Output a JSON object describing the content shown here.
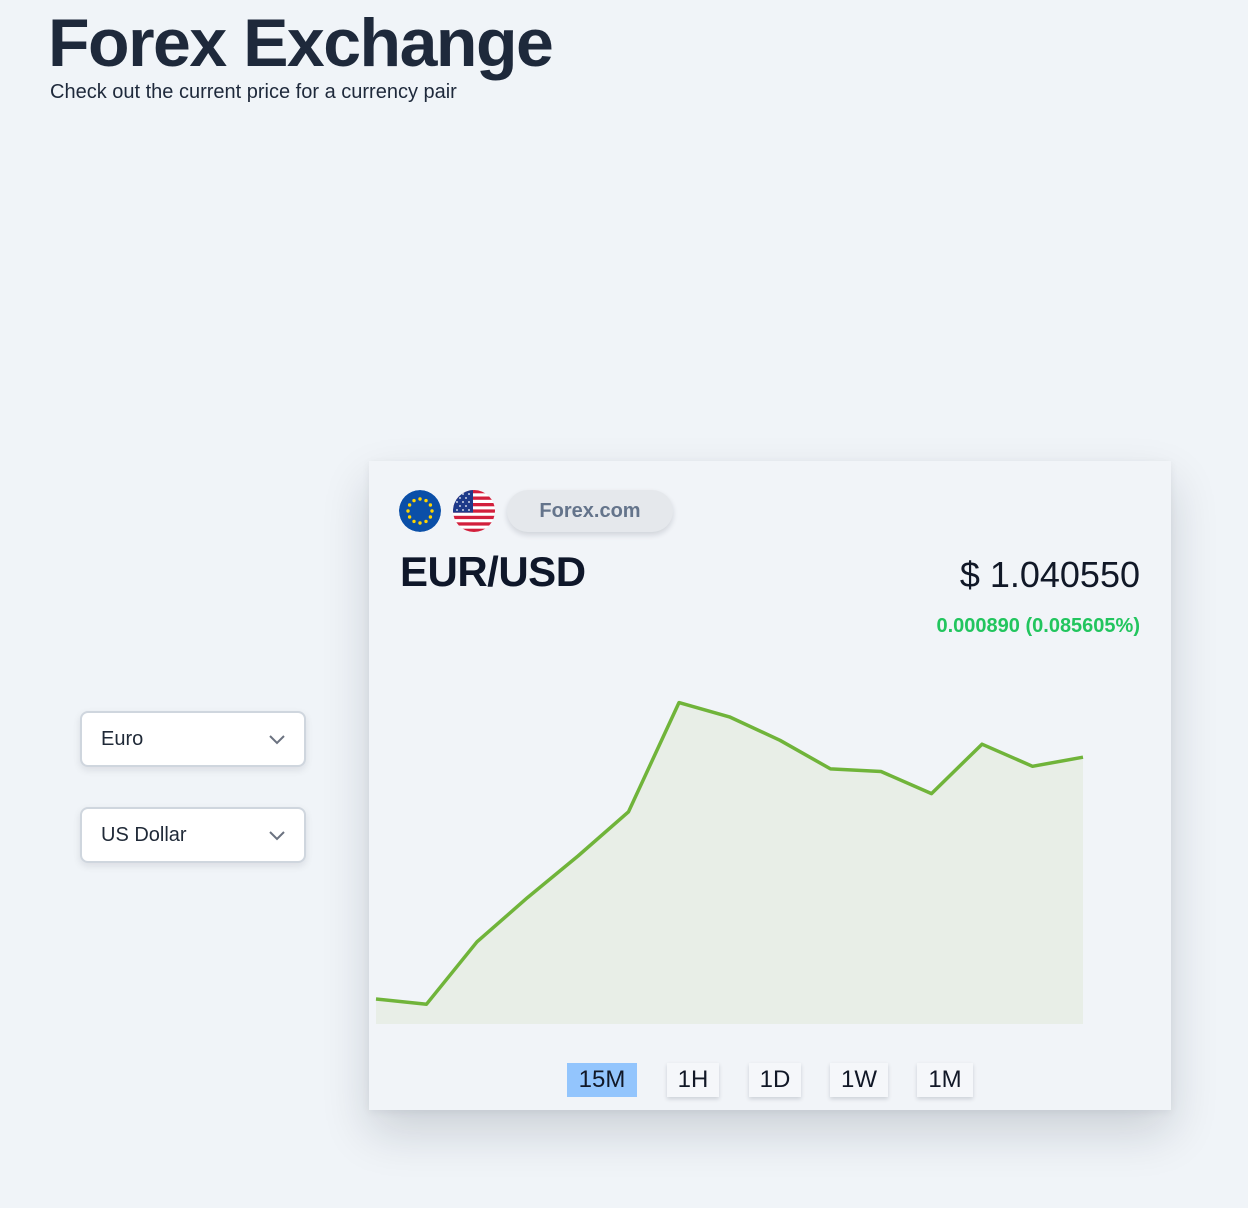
{
  "header": {
    "title": "Forex Exchange",
    "subtitle": "Check out the current price for a currency pair"
  },
  "selectors": {
    "base": {
      "value": "Euro",
      "icon": "chevron-down-icon"
    },
    "quote": {
      "value": "US Dollar",
      "icon": "chevron-down-icon"
    }
  },
  "card": {
    "flags": [
      "eu-flag-icon",
      "us-flag-icon"
    ],
    "source": "Forex.com",
    "pair": "EUR/USD",
    "price": "$ 1.040550",
    "change": "0.000890 (0.085605%)",
    "colors": {
      "line": "#70b43a",
      "area": "#e8eee7",
      "change": "#22c55e",
      "active_tab": "#93c5fd"
    }
  },
  "timeframes": [
    {
      "label": "15M",
      "active": true
    },
    {
      "label": "1H",
      "active": false
    },
    {
      "label": "1D",
      "active": false
    },
    {
      "label": "1W",
      "active": false
    },
    {
      "label": "1M",
      "active": false
    }
  ],
  "chart_data": {
    "type": "area",
    "series": [
      {
        "values": [
          2,
          1.6,
          6.4,
          9.8,
          13,
          16.4,
          24.8,
          23.7,
          21.9,
          19.7,
          19.5,
          17.8,
          21.6,
          19.9,
          20.6
        ]
      }
    ],
    "ylim": [
      0,
      28
    ],
    "grid": false,
    "legend": "none"
  }
}
